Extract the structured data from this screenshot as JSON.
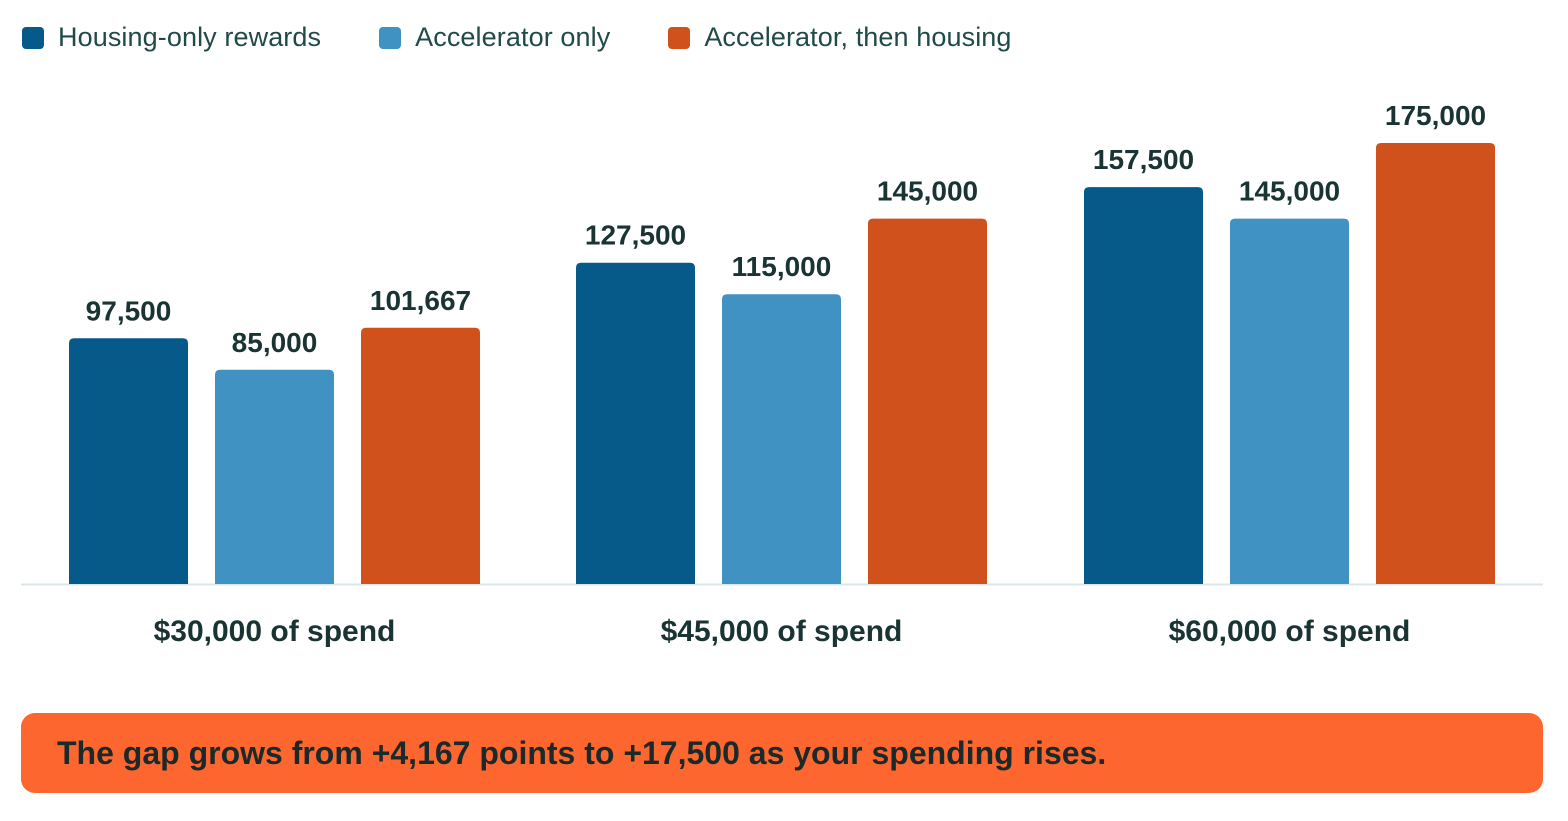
{
  "chart_data": {
    "type": "bar",
    "categories": [
      "$30,000 of spend",
      "$45,000 of spend",
      "$60,000 of spend"
    ],
    "series": [
      {
        "name": "Housing-only rewards",
        "color": "#065a8a",
        "values": [
          97500,
          127500,
          157500
        ],
        "labels": [
          "97,500",
          "127,500",
          "157,500"
        ]
      },
      {
        "name": "Accelerator only",
        "color": "#4092c2",
        "values": [
          85000,
          115000,
          145000
        ],
        "labels": [
          "85,000",
          "115,000",
          "145,000"
        ]
      },
      {
        "name": "Accelerator, then housing",
        "color": "#d1511c",
        "values": [
          101667,
          145000,
          175000
        ],
        "labels": [
          "101,667",
          "145,000",
          "175,000"
        ]
      }
    ],
    "ylim": [
      0,
      200000
    ],
    "grid": false,
    "legend": "top-left"
  },
  "banner": {
    "text": "The gap grows from +4,167 points to +17,500 as your spending rises.",
    "color": "#fd672f"
  }
}
